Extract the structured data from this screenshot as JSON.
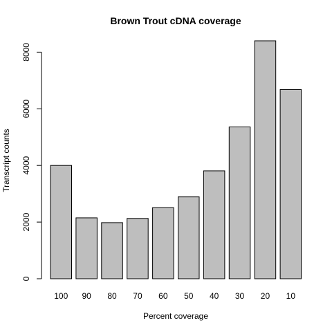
{
  "chart_data": {
    "type": "bar",
    "title": "Brown Trout cDNA coverage",
    "xlabel": "Percent coverage",
    "ylabel": "Transcript counts",
    "categories": [
      "100",
      "90",
      "80",
      "70",
      "60",
      "50",
      "40",
      "30",
      "20",
      "10"
    ],
    "values": [
      4000,
      2150,
      1980,
      2130,
      2510,
      2890,
      3810,
      5360,
      8400,
      6680
    ],
    "yticks": [
      "0",
      "2000",
      "4000",
      "6000",
      "8000"
    ],
    "ylim": [
      0,
      8400
    ],
    "grid": false,
    "legend": "none",
    "bar_color": "#bebebe"
  }
}
